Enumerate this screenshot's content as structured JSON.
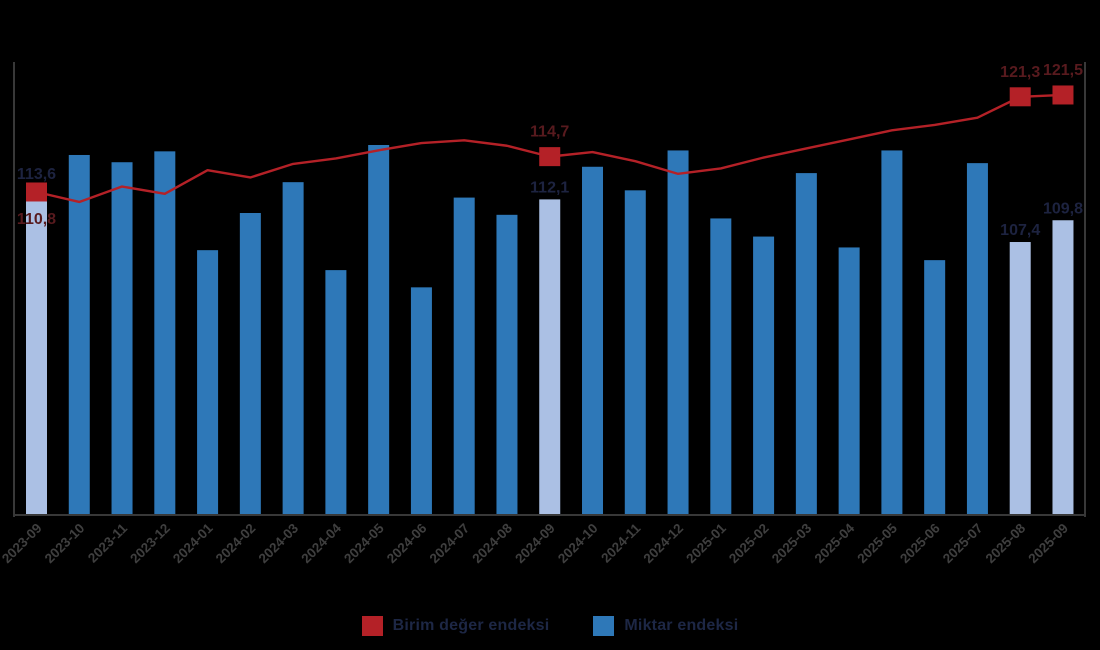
{
  "colors": {
    "background": "#000000",
    "axis_line": "#383838",
    "tick_label": "#3f3f3f",
    "bar_blue": "#2E78B8",
    "bar_highlight_blue": "#ABC0E4",
    "line_red": "#B42127",
    "bar_label_color": "#1d2340",
    "line_label_color": "#581a1e",
    "legend_text_color": "#1d2745"
  },
  "legend": {
    "position": "bottom",
    "items": [
      {
        "label": "Birim değer endeksi",
        "color": "#B42127",
        "swatch": "red-square"
      },
      {
        "label": "Miktar endeksi",
        "color": "#2E78B8",
        "swatch": "blue-square"
      }
    ]
  },
  "chart_data": {
    "type": "combo-bar-line",
    "title": "",
    "xlabel": "",
    "ylabel": "",
    "y_axis_labels_visible": false,
    "grid": false,
    "decimal_separator": ",",
    "categories": [
      "2023-09",
      "2023-10",
      "2023-11",
      "2023-12",
      "2024-01",
      "2024-02",
      "2024-03",
      "2024-04",
      "2024-05",
      "2024-06",
      "2024-07",
      "2024-08",
      "2024-09",
      "2024-10",
      "2024-11",
      "2024-12",
      "2025-01",
      "2025-02",
      "2025-03",
      "2025-04",
      "2025-05",
      "2025-06",
      "2025-07",
      "2025-08",
      "2025-09"
    ],
    "series": [
      {
        "name": "Miktar endeksi",
        "type": "bar",
        "color": "#2E78B8",
        "highlight_color": "#ABC0E4",
        "highlighted_categories": [
          "2023-09",
          "2024-09",
          "2025-08",
          "2025-09"
        ],
        "labeled_categories": [
          "2023-09",
          "2024-09",
          "2025-08",
          "2025-09"
        ],
        "values": [
          113.6,
          117.0,
          116.2,
          117.4,
          106.5,
          110.6,
          114.0,
          104.3,
          118.1,
          102.4,
          112.3,
          110.4,
          112.1,
          115.7,
          113.1,
          117.5,
          110.0,
          108.0,
          115.0,
          106.8,
          117.5,
          105.4,
          116.1,
          107.4,
          109.8
        ]
      },
      {
        "name": "Birim değer endeksi",
        "type": "line",
        "color": "#B42127",
        "marker": "square",
        "marker_categories": [
          "2023-09",
          "2024-09",
          "2025-08",
          "2025-09"
        ],
        "labeled_categories": [
          "2023-09",
          "2024-09",
          "2025-08",
          "2025-09"
        ],
        "values": [
          110.8,
          109.7,
          111.4,
          110.6,
          113.2,
          112.4,
          113.9,
          114.5,
          115.4,
          116.2,
          116.5,
          115.9,
          114.7,
          115.2,
          114.2,
          112.8,
          113.4,
          114.6,
          115.6,
          116.6,
          117.6,
          118.2,
          119.0,
          121.3,
          121.5
        ]
      }
    ],
    "data_labels_shown": {
      "Miktar endeksi": {
        "2023-09": "113,6",
        "2024-09": "112,1",
        "2025-08": "107,4",
        "2025-09": "109,8"
      },
      "Birim değer endeksi": {
        "2023-09": "110,8",
        "2024-09": "114,7",
        "2025-08": "121,3",
        "2025-09": "121,5"
      }
    }
  }
}
